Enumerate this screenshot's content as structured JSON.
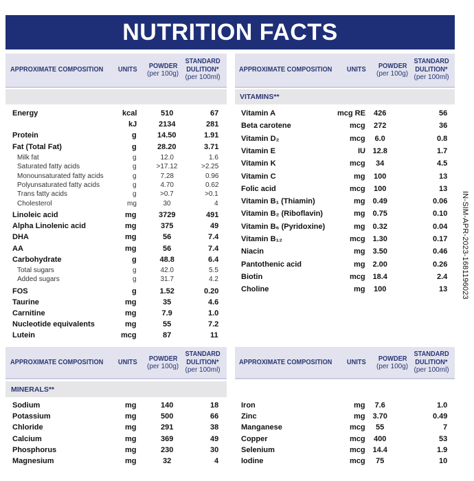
{
  "title": "NUTRITION FACTS",
  "side_code": "IN-SIM-APR-2023-1681196023",
  "panels": [
    {
      "header": {
        "composition": "APPROXIMATE COMPOSITION",
        "units": "UNITS",
        "powder": [
          "POWDER",
          "(per 100g)"
        ],
        "standard": [
          "STANDARD",
          "DULITION*",
          "(per 100ml)"
        ]
      },
      "rows": [
        {
          "name": "Energy",
          "unit": "kcal",
          "powder": "510",
          "standard": "67"
        },
        {
          "unit": "kJ",
          "powder": "2134",
          "standard": "281"
        },
        {
          "name": "Protein",
          "unit": "g",
          "powder": "14.50",
          "standard": "1.91"
        },
        {
          "name": "Fat (Total Fat)",
          "unit": "g",
          "powder": "28.20",
          "standard": "3.71"
        },
        {
          "name": "Milk fat",
          "unit": "g",
          "powder": "12.0",
          "standard": "1.6",
          "indent": true
        },
        {
          "name": "Saturated fatty acids",
          "unit": "g",
          "powder": ">17.12",
          "standard": ">2.25",
          "indent": true
        },
        {
          "name": "Monounsaturated fatty acids",
          "unit": "g",
          "powder": "7.28",
          "standard": "0.96",
          "indent": true
        },
        {
          "name": "Polyunsaturated fatty acids",
          "unit": "g",
          "powder": "4.70",
          "standard": "0.62",
          "indent": true
        },
        {
          "name": "Trans fatty acids",
          "unit": "g",
          "powder": ">0.7",
          "standard": ">0.1",
          "indent": true
        },
        {
          "name": "Cholesterol",
          "unit": "mg",
          "powder": "30",
          "standard": "4",
          "indent": true
        },
        {
          "name": "Linoleic acid",
          "unit": "mg",
          "powder": "3729",
          "standard": "491"
        },
        {
          "name": "Alpha Linolenic acid",
          "unit": "mg",
          "powder": "375",
          "standard": "49"
        },
        {
          "name": "DHA",
          "unit": "mg",
          "powder": "56",
          "standard": "7.4"
        },
        {
          "name": "AA",
          "unit": "mg",
          "powder": "56",
          "standard": "7.4"
        },
        {
          "name": "Carbohydrate",
          "unit": "g",
          "powder": "48.8",
          "standard": "6.4"
        },
        {
          "name": "Total sugars",
          "unit": "g",
          "powder": "42.0",
          "standard": "5.5",
          "indent": true
        },
        {
          "name": "Added sugars",
          "unit": "g",
          "powder": "31.7",
          "standard": "4.2",
          "indent": true
        },
        {
          "name": "FOS",
          "unit": "g",
          "powder": "1.52",
          "standard": "0.20"
        },
        {
          "name": "Taurine",
          "unit": "mg",
          "powder": "35",
          "standard": "4.6"
        },
        {
          "name": "Carnitine",
          "unit": "mg",
          "powder": "7.9",
          "standard": "1.0"
        },
        {
          "name": "Nucleotide equivalents",
          "unit": "mg",
          "powder": "55",
          "standard": "7.2"
        },
        {
          "name": "Lutein",
          "unit": "mcg",
          "powder": "87",
          "standard": "11"
        }
      ]
    },
    {
      "header": {
        "composition": "APPROXIMATE COMPOSITION",
        "units": "UNITS",
        "powder": [
          "POWDER",
          "(per 100g)"
        ],
        "standard": [
          "STANDARD",
          "DULITION*",
          "(per 100ml)"
        ]
      },
      "section": "VITAMINS**",
      "rows": [
        {
          "name": "Vitamin A",
          "unit": "mcg RE",
          "powder": "426",
          "standard": "56"
        },
        {
          "name": "Beta carotene",
          "unit": "mcg",
          "powder": "272",
          "standard": "36"
        },
        {
          "name": "Vitamin D₂",
          "unit": "mcg",
          "powder": "6.0",
          "standard": "0.8"
        },
        {
          "name": "Vitamin E",
          "unit": "IU",
          "powder": "12.8",
          "standard": "1.7"
        },
        {
          "name": "Vitamin K",
          "unit": "mcg",
          "powder": "34",
          "standard": "4.5"
        },
        {
          "name": "Vitamin C",
          "unit": "mg",
          "powder": "100",
          "standard": "13"
        },
        {
          "name": "Folic acid",
          "unit": "mcg",
          "powder": "100",
          "standard": "13"
        },
        {
          "name": "Vitamin B₁ (Thiamin)",
          "unit": "mg",
          "powder": "0.49",
          "standard": "0.06"
        },
        {
          "name": "Vitamin B₂ (Riboflavin)",
          "unit": "mg",
          "powder": "0.75",
          "standard": "0.10"
        },
        {
          "name": "Vitamin B₆ (Pyridoxine)",
          "unit": "mg",
          "powder": "0.32",
          "standard": "0.04"
        },
        {
          "name": "Vitamin B₁₂",
          "unit": "mcg",
          "powder": "1.30",
          "standard": "0.17"
        },
        {
          "name": "Niacin",
          "unit": "mg",
          "powder": "3.50",
          "standard": "0.46"
        },
        {
          "name": "Pantothenic acid",
          "unit": "mg",
          "powder": "2.00",
          "standard": "0.26"
        },
        {
          "name": "Biotin",
          "unit": "mcg",
          "powder": "18.4",
          "standard": "2.4"
        },
        {
          "name": "Choline",
          "unit": "mg",
          "powder": "100",
          "standard": "13"
        }
      ]
    },
    {
      "header": {
        "composition": "APPROXIMATE COMPOSITION",
        "units": "UNITS",
        "powder": [
          "POWDER",
          "(per 100g)"
        ],
        "standard": [
          "STANDARD",
          "DULITION*",
          "(per 100ml)"
        ]
      },
      "section": "MINERALS**",
      "rows": [
        {
          "name": "Sodium",
          "unit": "mg",
          "powder": "140",
          "standard": "18"
        },
        {
          "name": "Potassium",
          "unit": "mg",
          "powder": "500",
          "standard": "66"
        },
        {
          "name": "Chloride",
          "unit": "mg",
          "powder": "291",
          "standard": "38"
        },
        {
          "name": "Calcium",
          "unit": "mg",
          "powder": "369",
          "standard": "49"
        },
        {
          "name": "Phosphorus",
          "unit": "mg",
          "powder": "230",
          "standard": "30"
        },
        {
          "name": "Magnesium",
          "unit": "mg",
          "powder": "32",
          "standard": "4"
        }
      ]
    },
    {
      "header": {
        "composition": "APPROXIMATE COMPOSITION",
        "units": "UNITS",
        "powder": [
          "POWDER",
          "(per 100g)"
        ],
        "standard": [
          "STANDARD",
          "DULITION*",
          "(per 100ml)"
        ]
      },
      "rows": [
        {
          "name": "Iron",
          "unit": "mg",
          "powder": "7.6",
          "standard": "1.0"
        },
        {
          "name": "Zinc",
          "unit": "mg",
          "powder": "3.70",
          "standard": "0.49"
        },
        {
          "name": "Manganese",
          "unit": "mcg",
          "powder": "55",
          "standard": "7"
        },
        {
          "name": "Copper",
          "unit": "mcg",
          "powder": "400",
          "standard": "53"
        },
        {
          "name": "Selenium",
          "unit": "mcg",
          "powder": "14.4",
          "standard": "1.9"
        },
        {
          "name": "Iodine",
          "unit": "mcg",
          "powder": "75",
          "standard": "10"
        }
      ]
    }
  ]
}
